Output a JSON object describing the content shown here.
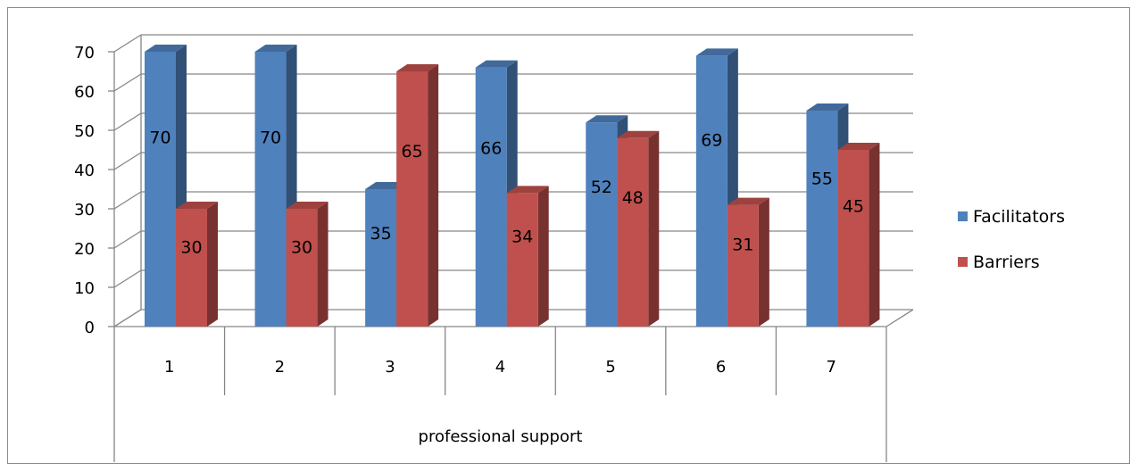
{
  "chart_data": {
    "type": "bar",
    "categories": [
      "1",
      "2",
      "3",
      "4",
      "5",
      "6",
      "7"
    ],
    "category_group": "professional support",
    "series": [
      {
        "name": "Facilitators",
        "color": "#4f81bd",
        "values": [
          70,
          70,
          35,
          66,
          52,
          69,
          55
        ]
      },
      {
        "name": "Barriers",
        "color": "#c0504d",
        "values": [
          30,
          30,
          65,
          34,
          48,
          31,
          45
        ]
      }
    ],
    "y_ticks": [
      "0",
      "10",
      "20",
      "30",
      "40",
      "50",
      "60",
      "70"
    ],
    "ylim": [
      0,
      70
    ],
    "grid": true,
    "legend_position": "right",
    "style": "3d-clustered-column",
    "data_labels": true
  }
}
